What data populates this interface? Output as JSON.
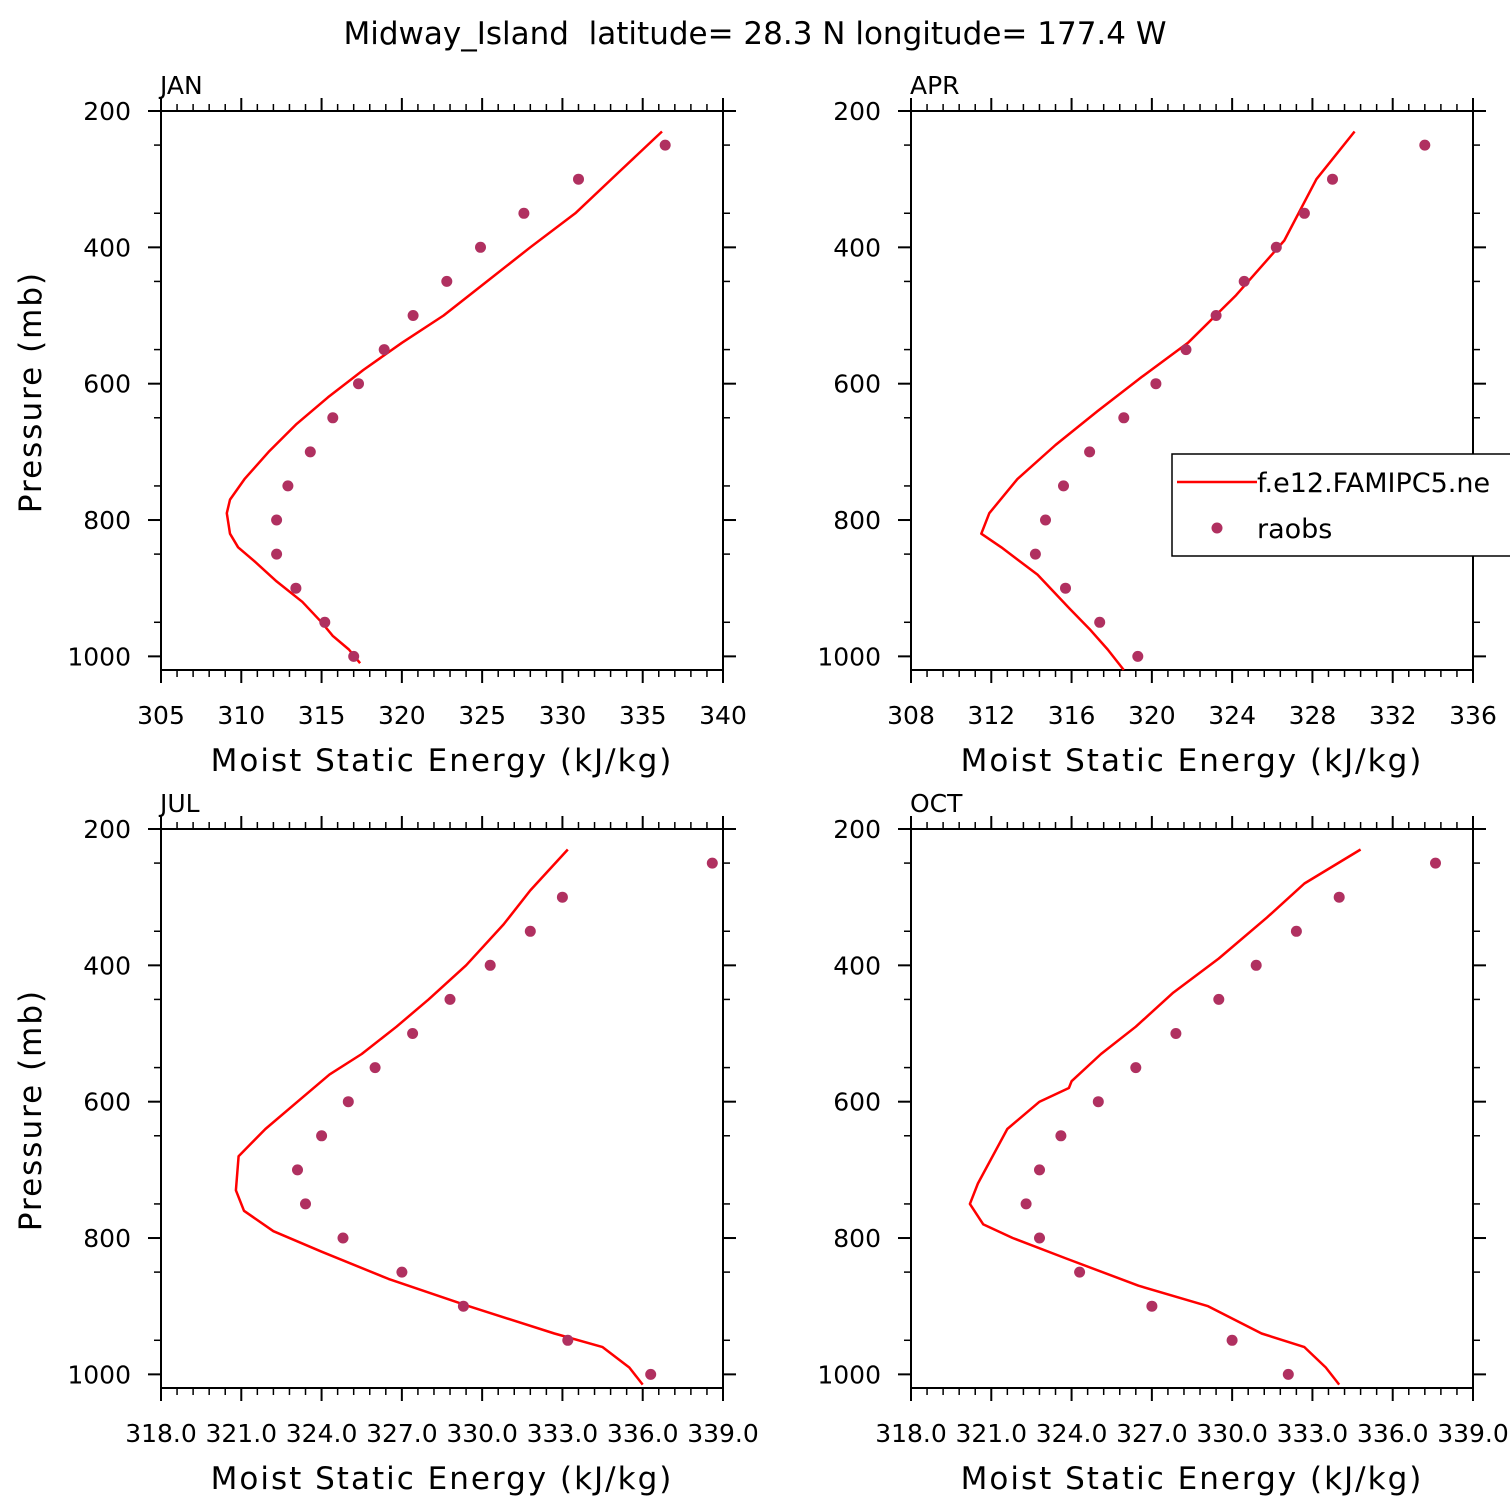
{
  "colors": {
    "model_line": "#ff0000",
    "obs_marker": "#b03060",
    "axis": "#000000",
    "background": "#ffffff"
  },
  "chart_data": {
    "title": "Midway_Island  latitude= 28.3 N longitude= 177.4 W",
    "type": "line",
    "legend": {
      "placement": "right-middle of APR panel",
      "entries": [
        {
          "label": "f.e12.FAMIPC5.ne",
          "kind": "line"
        },
        {
          "label": "raobs",
          "kind": "marker"
        }
      ]
    },
    "panels": [
      {
        "id": "jan",
        "label": "JAN",
        "xlabel": "Moist Static Energy (kJ/kg)",
        "ylabel": "Pressure (mb)",
        "xlim": [
          305,
          340
        ],
        "ylim": [
          1020,
          200
        ],
        "x_ticks": [
          "305",
          "310",
          "315",
          "320",
          "325",
          "330",
          "335",
          "340"
        ],
        "y_ticks": [
          "200",
          "400",
          "600",
          "800",
          "1000"
        ],
        "model": {
          "name": "f.e12.FAMIPC5.ne",
          "x": [
            317.4,
            316.7,
            315.7,
            315.0,
            313.8,
            312.2,
            310.8,
            309.8,
            309.3,
            309.1,
            309.3,
            310.2,
            311.7,
            313.4,
            315.4,
            317.6,
            320.0,
            322.6,
            325.3,
            328.0,
            330.8,
            333.5,
            336.2
          ],
          "y": [
            1010,
            990,
            970,
            950,
            920,
            890,
            860,
            840,
            820,
            790,
            770,
            740,
            700,
            660,
            620,
            580,
            540,
            500,
            450,
            400,
            350,
            290,
            230
          ]
        },
        "obs": {
          "name": "raobs",
          "x": [
            317.0,
            315.2,
            313.4,
            312.2,
            312.2,
            312.9,
            314.3,
            315.7,
            317.3,
            318.9,
            320.7,
            322.8,
            324.9,
            327.6,
            331.0,
            336.4
          ],
          "y": [
            1000,
            950,
            900,
            850,
            800,
            750,
            700,
            650,
            600,
            550,
            500,
            450,
            400,
            350,
            300,
            250
          ]
        }
      },
      {
        "id": "apr",
        "label": "APR",
        "xlabel": "Moist Static Energy (kJ/kg)",
        "ylabel": "",
        "xlim": [
          308,
          336
        ],
        "ylim": [
          1020,
          200
        ],
        "x_ticks": [
          "308",
          "312",
          "316",
          "320",
          "324",
          "328",
          "332",
          "336"
        ],
        "y_ticks": [
          "200",
          "400",
          "600",
          "800",
          "1000"
        ],
        "model": {
          "name": "f.e12.FAMIPC5.ne",
          "x": [
            318.6,
            317.8,
            316.9,
            315.9,
            314.3,
            312.5,
            311.5,
            311.9,
            313.3,
            315.2,
            317.3,
            319.5,
            321.8,
            324.2,
            326.6,
            328.2,
            330.1
          ],
          "y": [
            1020,
            990,
            960,
            930,
            880,
            840,
            820,
            790,
            740,
            690,
            640,
            590,
            540,
            470,
            390,
            300,
            230
          ]
        },
        "obs": {
          "name": "raobs",
          "x": [
            319.3,
            317.4,
            315.7,
            314.2,
            314.7,
            315.6,
            316.9,
            318.6,
            320.2,
            321.7,
            323.2,
            324.6,
            326.2,
            327.6,
            329.0,
            333.6
          ],
          "y": [
            1000,
            950,
            900,
            850,
            800,
            750,
            700,
            650,
            600,
            550,
            500,
            450,
            400,
            350,
            300,
            250
          ]
        }
      },
      {
        "id": "jul",
        "label": "JUL",
        "xlabel": "Moist Static Energy (kJ/kg)",
        "ylabel": "Pressure (mb)",
        "xlim": [
          318.0,
          339.0
        ],
        "ylim": [
          1020,
          200
        ],
        "x_ticks": [
          "318.0",
          "321.0",
          "324.0",
          "327.0",
          "330.0",
          "333.0",
          "336.0",
          "339.0"
        ],
        "y_ticks": [
          "200",
          "400",
          "600",
          "800",
          "1000"
        ],
        "model": {
          "name": "f.e12.FAMIPC5.ne",
          "x": [
            336.0,
            335.5,
            334.5,
            332.7,
            329.5,
            326.5,
            324.0,
            322.2,
            321.1,
            320.8,
            320.9,
            321.9,
            323.1,
            324.3,
            325.5,
            326.8,
            328.0,
            329.4,
            330.8,
            331.8,
            333.2
          ],
          "y": [
            1015,
            990,
            960,
            940,
            900,
            860,
            820,
            790,
            760,
            730,
            680,
            640,
            600,
            560,
            530,
            490,
            450,
            400,
            340,
            290,
            230
          ]
        },
        "obs": {
          "name": "raobs",
          "x": [
            336.3,
            333.2,
            329.3,
            327.0,
            324.8,
            323.4,
            323.1,
            324.0,
            325.0,
            326.0,
            327.4,
            328.8,
            330.3,
            331.8,
            333.0,
            338.6
          ],
          "y": [
            1000,
            950,
            900,
            850,
            800,
            750,
            700,
            650,
            600,
            550,
            500,
            450,
            400,
            350,
            300,
            250
          ]
        }
      },
      {
        "id": "oct",
        "label": "OCT",
        "xlabel": "Moist Static Energy (kJ/kg)",
        "ylabel": "",
        "xlim": [
          318.0,
          339.0
        ],
        "ylim": [
          1020,
          200
        ],
        "x_ticks": [
          "318.0",
          "321.0",
          "324.0",
          "327.0",
          "330.0",
          "333.0",
          "336.0",
          "339.0"
        ],
        "y_ticks": [
          "200",
          "400",
          "600",
          "800",
          "1000"
        ],
        "model": {
          "name": "f.e12.FAMIPC5.ne",
          "x": [
            334.0,
            333.5,
            332.7,
            331.1,
            329.1,
            326.5,
            323.8,
            321.8,
            320.7,
            320.2,
            320.5,
            321.6,
            322.8,
            323.9,
            324.0,
            325.1,
            326.4,
            327.8,
            329.5,
            331.3,
            332.7,
            334.8
          ],
          "y": [
            1015,
            990,
            960,
            940,
            900,
            870,
            830,
            800,
            780,
            750,
            720,
            640,
            600,
            580,
            570,
            530,
            490,
            440,
            390,
            330,
            280,
            230
          ]
        },
        "obs": {
          "name": "raobs",
          "x": [
            332.1,
            330.0,
            327.0,
            324.3,
            322.8,
            322.3,
            322.8,
            323.6,
            325.0,
            326.4,
            327.9,
            329.5,
            330.9,
            332.4,
            334.0,
            337.6
          ],
          "y": [
            1000,
            950,
            900,
            850,
            800,
            750,
            700,
            650,
            600,
            550,
            500,
            450,
            400,
            350,
            300,
            250
          ]
        }
      }
    ]
  }
}
